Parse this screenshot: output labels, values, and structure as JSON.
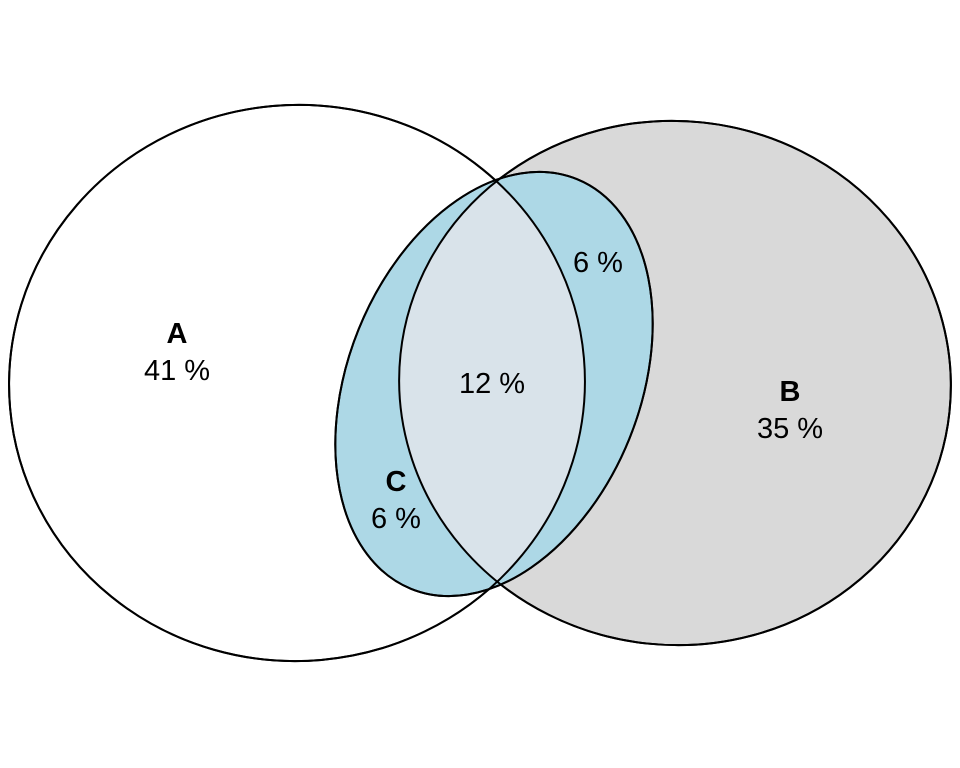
{
  "diagram": {
    "type": "venn",
    "sets": {
      "a": {
        "name": "A",
        "value": "41 %",
        "fill": "#ffffff"
      },
      "b": {
        "name": "B",
        "value": "35 %",
        "fill": "#d9d9d9"
      },
      "c": {
        "name": "C",
        "value": "6 %",
        "fill": "#add8e6"
      }
    },
    "regions": {
      "b_and_c": {
        "value": "6 %"
      },
      "a_and_b_and_c": {
        "value": "12 %",
        "fill": "#d9e3ea"
      }
    },
    "stroke": "#000000"
  }
}
